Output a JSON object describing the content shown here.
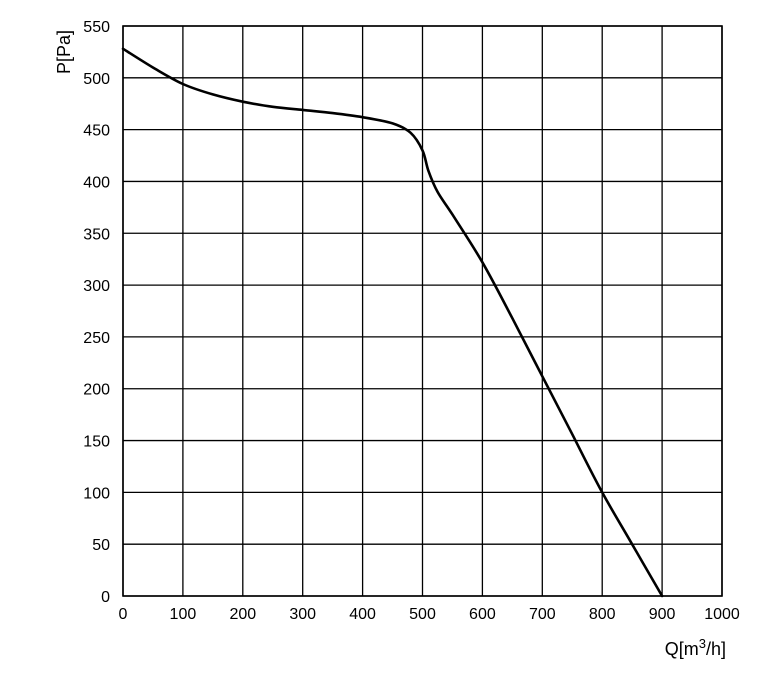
{
  "chart_data": {
    "type": "line",
    "xlabel": "Q[m3/h]",
    "xlabel_parts": {
      "base": "Q[m",
      "sup": "3",
      "tail": "/h]"
    },
    "ylabel": "P[Pa]",
    "xlim": [
      0,
      1000
    ],
    "ylim": [
      0,
      550
    ],
    "x_ticks": [
      0,
      100,
      200,
      300,
      400,
      500,
      600,
      700,
      800,
      900,
      1000
    ],
    "y_ticks": [
      0,
      50,
      100,
      150,
      200,
      250,
      300,
      350,
      400,
      450,
      500,
      550
    ],
    "grid": true,
    "series": [
      {
        "x": [
          0,
          50,
          100,
          150,
          200,
          250,
          300,
          350,
          400,
          450,
          480,
          500,
          510,
          525,
          550,
          600,
          650,
          700,
          750,
          800,
          850,
          900
        ],
        "y": [
          528,
          510,
          494,
          484,
          477,
          472,
          469,
          466,
          462,
          456,
          447,
          430,
          410,
          390,
          368,
          322,
          268,
          212,
          156,
          100,
          50,
          0
        ]
      }
    ]
  }
}
